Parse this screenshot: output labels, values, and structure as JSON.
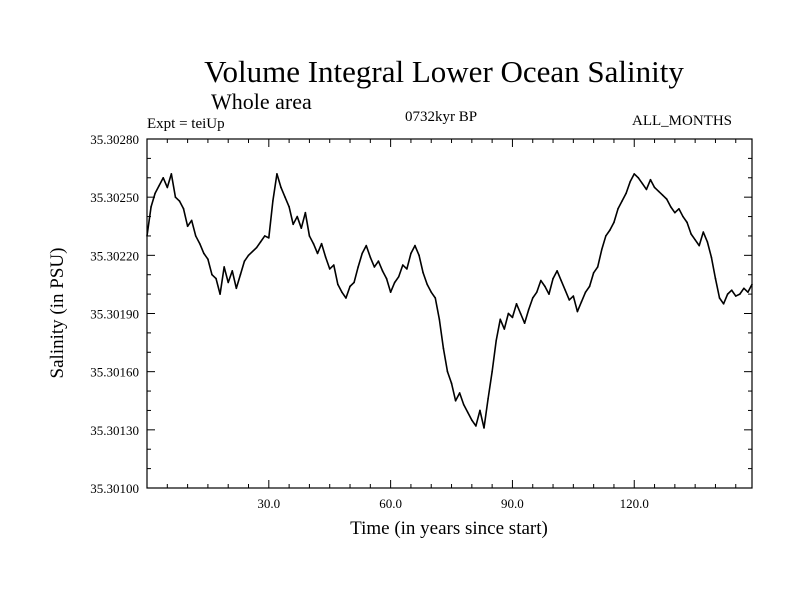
{
  "header": {
    "title": "Volume Integral Lower Ocean Salinity",
    "subtitle": "Whole area",
    "experiment": "Expt = teiUp",
    "period": "0732kyr BP",
    "months": "ALL_MONTHS"
  },
  "chart_data": {
    "type": "line",
    "title": "Volume Integral Lower Ocean Salinity",
    "subtitle": "Whole area",
    "xlabel": "Time (in years since start)",
    "ylabel": "Salinity (in PSU)",
    "xlim": [
      0,
      149
    ],
    "ylim": [
      35.301,
      35.3028
    ],
    "x_ticks": [
      30,
      60,
      90,
      120
    ],
    "x_tick_labels": [
      "30.0",
      "60.0",
      "90.0",
      "120.0"
    ],
    "y_ticks": [
      35.301,
      35.3013,
      35.3016,
      35.3019,
      35.3022,
      35.3025,
      35.3028
    ],
    "y_tick_labels": [
      "35.30100",
      "35.30130",
      "35.30160",
      "35.30190",
      "35.30220",
      "35.30250",
      "35.30280"
    ],
    "grid": false,
    "series": [
      {
        "name": "Salinity",
        "x": [
          0,
          1,
          2,
          3,
          4,
          5,
          6,
          7,
          8,
          9,
          10,
          11,
          12,
          13,
          14,
          15,
          16,
          17,
          18,
          19,
          20,
          21,
          22,
          23,
          24,
          25,
          26,
          27,
          28,
          29,
          30,
          31,
          32,
          33,
          34,
          35,
          36,
          37,
          38,
          39,
          40,
          41,
          42,
          43,
          44,
          45,
          46,
          47,
          48,
          49,
          50,
          51,
          52,
          53,
          54,
          55,
          56,
          57,
          58,
          59,
          60,
          61,
          62,
          63,
          64,
          65,
          66,
          67,
          68,
          69,
          70,
          71,
          72,
          73,
          74,
          75,
          76,
          77,
          78,
          79,
          80,
          81,
          82,
          83,
          84,
          85,
          86,
          87,
          88,
          89,
          90,
          91,
          92,
          93,
          94,
          95,
          96,
          97,
          98,
          99,
          100,
          101,
          102,
          103,
          104,
          105,
          106,
          107,
          108,
          109,
          110,
          111,
          112,
          113,
          114,
          115,
          116,
          117,
          118,
          119,
          120,
          121,
          122,
          123,
          124,
          125,
          126,
          127,
          128,
          129,
          130,
          131,
          132,
          133,
          134,
          135,
          136,
          137,
          138,
          139,
          140,
          141,
          142,
          143,
          144,
          145,
          146,
          147,
          148,
          149
        ],
        "values": [
          35.3023,
          35.30245,
          35.30252,
          35.30256,
          35.3026,
          35.30255,
          35.30262,
          35.3025,
          35.30248,
          35.30244,
          35.30235,
          35.30238,
          35.3023,
          35.30226,
          35.30221,
          35.30218,
          35.3021,
          35.30208,
          35.302,
          35.30214,
          35.30206,
          35.30212,
          35.30203,
          35.3021,
          35.30217,
          35.3022,
          35.30222,
          35.30224,
          35.30227,
          35.3023,
          35.30229,
          35.30248,
          35.30262,
          35.30255,
          35.3025,
          35.30245,
          35.30236,
          35.3024,
          35.30234,
          35.30242,
          35.3023,
          35.30226,
          35.30221,
          35.30226,
          35.30219,
          35.30213,
          35.30215,
          35.30205,
          35.30201,
          35.30198,
          35.30204,
          35.30206,
          35.30214,
          35.30221,
          35.30225,
          35.30219,
          35.30214,
          35.30217,
          35.30212,
          35.30208,
          35.30201,
          35.30206,
          35.30209,
          35.30215,
          35.30213,
          35.30221,
          35.30225,
          35.3022,
          35.30211,
          35.30205,
          35.30201,
          35.30198,
          35.30187,
          35.30172,
          35.3016,
          35.30154,
          35.30145,
          35.30149,
          35.30143,
          35.30139,
          35.30135,
          35.30132,
          35.3014,
          35.30131,
          35.30146,
          35.3016,
          35.30176,
          35.30187,
          35.30182,
          35.3019,
          35.30188,
          35.30195,
          35.3019,
          35.30185,
          35.30192,
          35.30198,
          35.30201,
          35.30207,
          35.30204,
          35.302,
          35.30208,
          35.30212,
          35.30207,
          35.30202,
          35.30197,
          35.30199,
          35.30191,
          35.30196,
          35.30201,
          35.30204,
          35.30211,
          35.30214,
          35.30223,
          35.3023,
          35.30233,
          35.30237,
          35.30244,
          35.30248,
          35.30252,
          35.30258,
          35.30262,
          35.3026,
          35.30257,
          35.30254,
          35.30259,
          35.30255,
          35.30253,
          35.30251,
          35.30249,
          35.30245,
          35.30242,
          35.30244,
          35.3024,
          35.30237,
          35.30231,
          35.30228,
          35.30225,
          35.30232,
          35.30227,
          35.30219,
          35.30208,
          35.30198,
          35.30195,
          35.302,
          35.30202,
          35.30199,
          35.302,
          35.30203,
          35.30201,
          35.30205
        ]
      }
    ]
  }
}
